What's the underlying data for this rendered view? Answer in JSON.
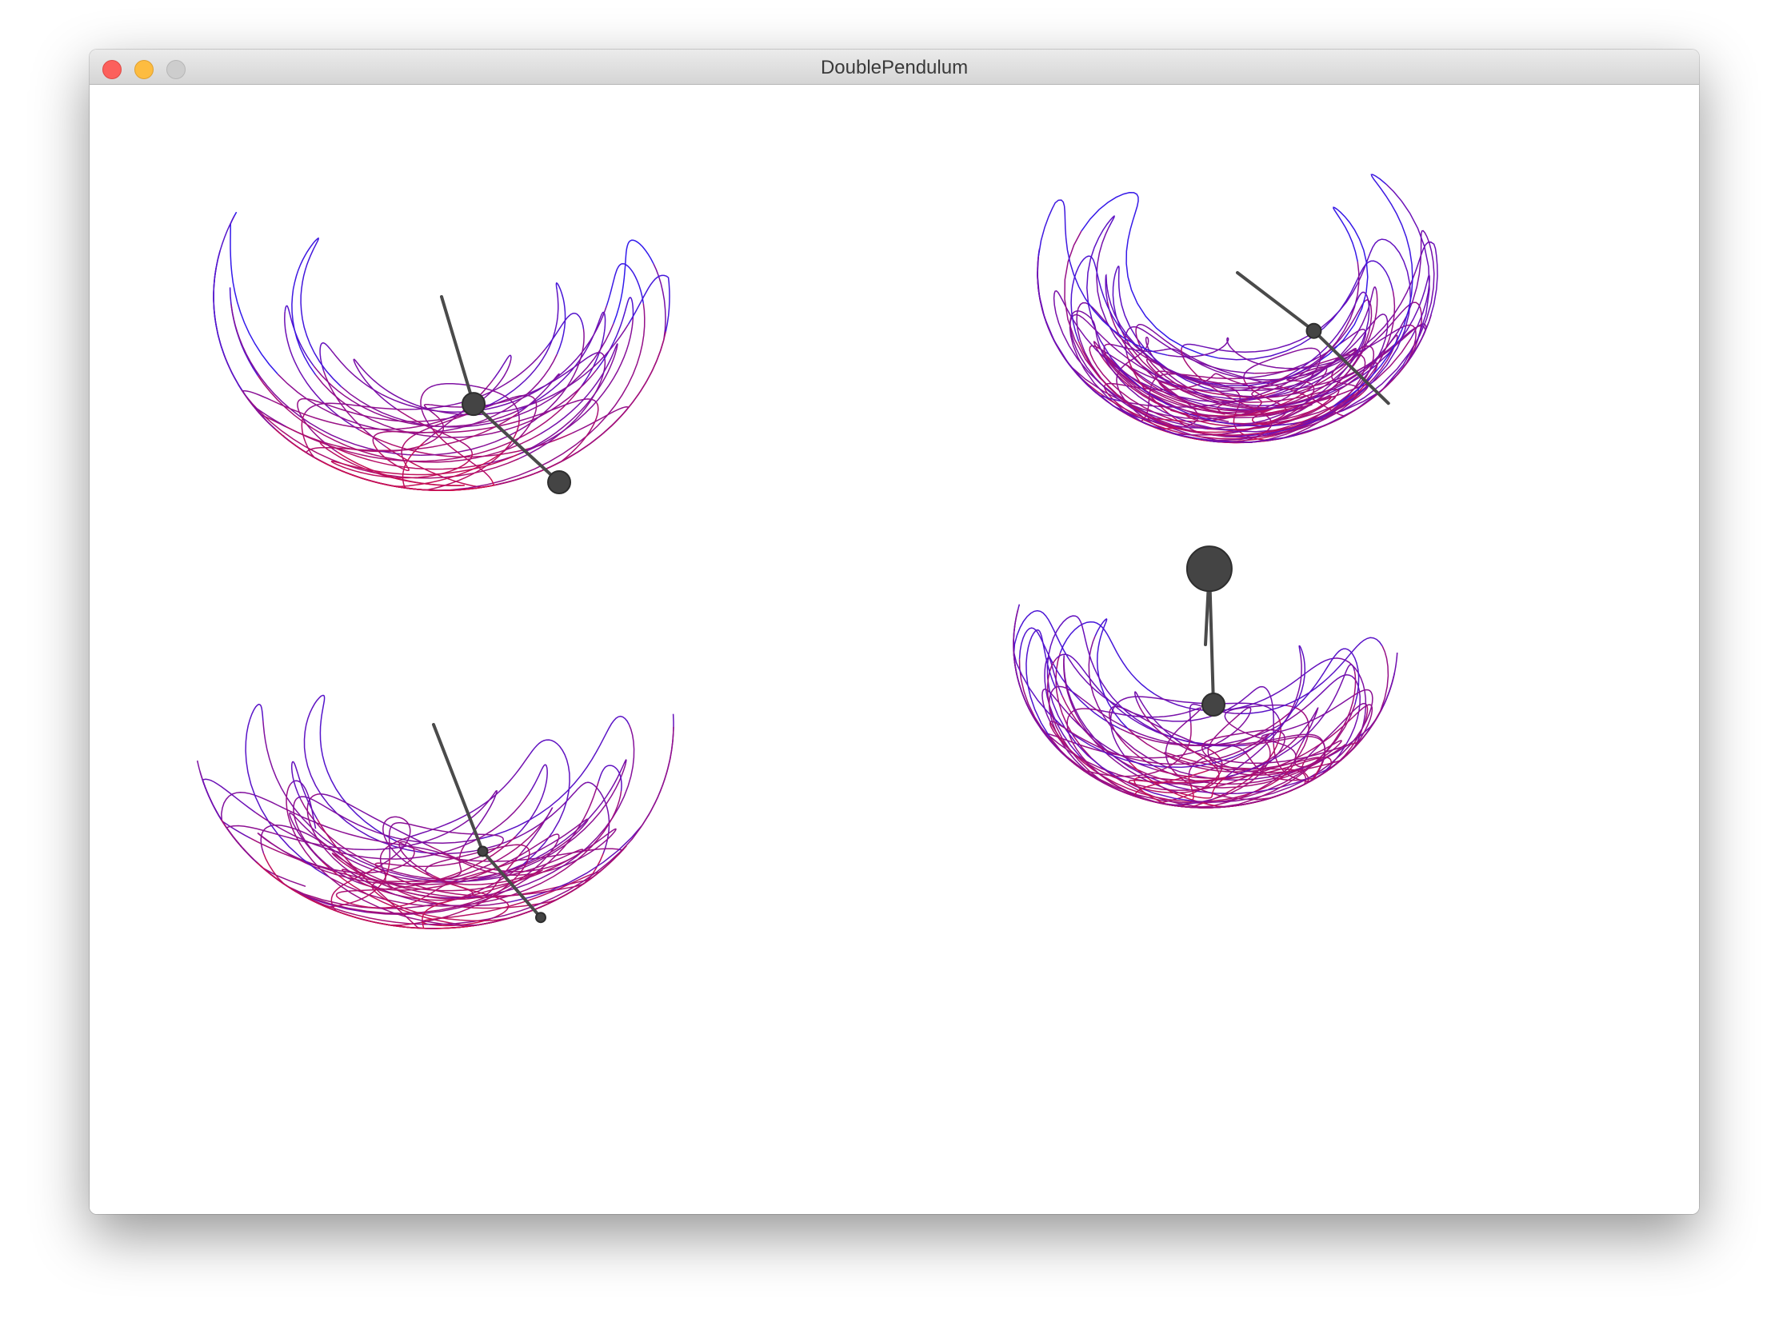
{
  "window": {
    "title": "DoublePendulum"
  },
  "colors": {
    "trail_top": "#1d1dff",
    "trail_mid": "#6a10b8",
    "trail_bottom": "#d0104a",
    "arm": "#4a4a4a",
    "bob": "#444444",
    "background": "#ffffff",
    "titlebar": "#e3e3e3",
    "close": "#fc605c",
    "minimize": "#fdbc40",
    "zoom": "#cdcdcd"
  },
  "simulations": [
    {
      "name": "pendulum-top-left",
      "seed": 11,
      "theta1": 0.29,
      "theta2": 0.83,
      "arm1": 0.48,
      "arm2": 0.52,
      "bob1": "medium",
      "bob2": "medium"
    },
    {
      "name": "pendulum-top-right",
      "seed": 23,
      "theta1": 0.92,
      "theta2": 0.8,
      "arm1": 0.52,
      "arm2": 0.48,
      "bob1": "small",
      "bob2": "none"
    },
    {
      "name": "pendulum-bottom-left",
      "seed": 37,
      "theta1": 0.37,
      "theta2": 0.72,
      "arm1": 0.6,
      "arm2": 0.4,
      "bob1": "tiny",
      "bob2": "tiny"
    },
    {
      "name": "pendulum-bottom-right",
      "seed": 53,
      "theta1": 3.09,
      "theta2": 0.03,
      "arm1": 0.43,
      "arm2": 0.57,
      "bob1": "large",
      "bob2": "medium"
    }
  ]
}
